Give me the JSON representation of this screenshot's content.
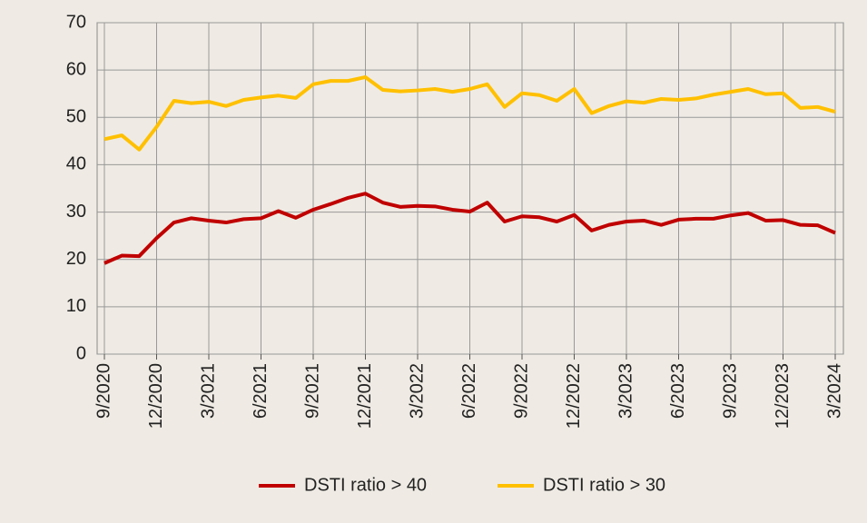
{
  "chart_data": {
    "type": "line",
    "categories": [
      "9/2020",
      null,
      null,
      "12/2020",
      null,
      null,
      "3/2021",
      null,
      null,
      "6/2021",
      null,
      null,
      "9/2021",
      null,
      null,
      "12/2021",
      null,
      null,
      "3/2022",
      null,
      null,
      "6/2022",
      null,
      null,
      "9/2022",
      null,
      null,
      "12/2022",
      null,
      null,
      "3/2023",
      null,
      null,
      "6/2023",
      null,
      null,
      "9/2023",
      null,
      null,
      "12/2023",
      null,
      null,
      "3/2024"
    ],
    "series": [
      {
        "name": "DSTI ratio > 40",
        "color": "#c00000",
        "values": [
          19.2,
          20.8,
          20.7,
          24.5,
          27.8,
          28.7,
          28.2,
          27.8,
          28.5,
          28.7,
          30.2,
          28.8,
          30.5,
          31.7,
          33.0,
          33.9,
          32.0,
          31.1,
          31.3,
          31.2,
          30.5,
          30.1,
          32.0,
          28.0,
          29.1,
          28.9,
          28.0,
          29.4,
          26.1,
          27.3,
          28.0,
          28.2,
          27.3,
          28.4,
          28.6,
          28.6,
          29.3,
          29.8,
          28.2,
          28.3,
          27.3,
          27.2,
          25.6
        ]
      },
      {
        "name": "DSTI ratio > 30",
        "color": "#ffc000",
        "values": [
          45.4,
          46.2,
          43.2,
          48.0,
          53.5,
          53.0,
          53.3,
          52.4,
          53.7,
          54.2,
          54.6,
          54.1,
          57.0,
          57.7,
          57.7,
          58.5,
          55.8,
          55.5,
          55.7,
          56.0,
          55.4,
          56.0,
          57.0,
          52.2,
          55.1,
          54.7,
          53.5,
          56.0,
          50.9,
          52.4,
          53.4,
          53.1,
          53.9,
          53.7,
          54.0,
          54.8,
          55.4,
          56.0,
          54.9,
          55.1,
          52.0,
          52.2,
          51.2
        ]
      }
    ],
    "ylim": [
      0,
      70
    ],
    "yticks": [
      0,
      10,
      20,
      30,
      40,
      50,
      60,
      70
    ],
    "grid": true,
    "legend": "bottom"
  }
}
